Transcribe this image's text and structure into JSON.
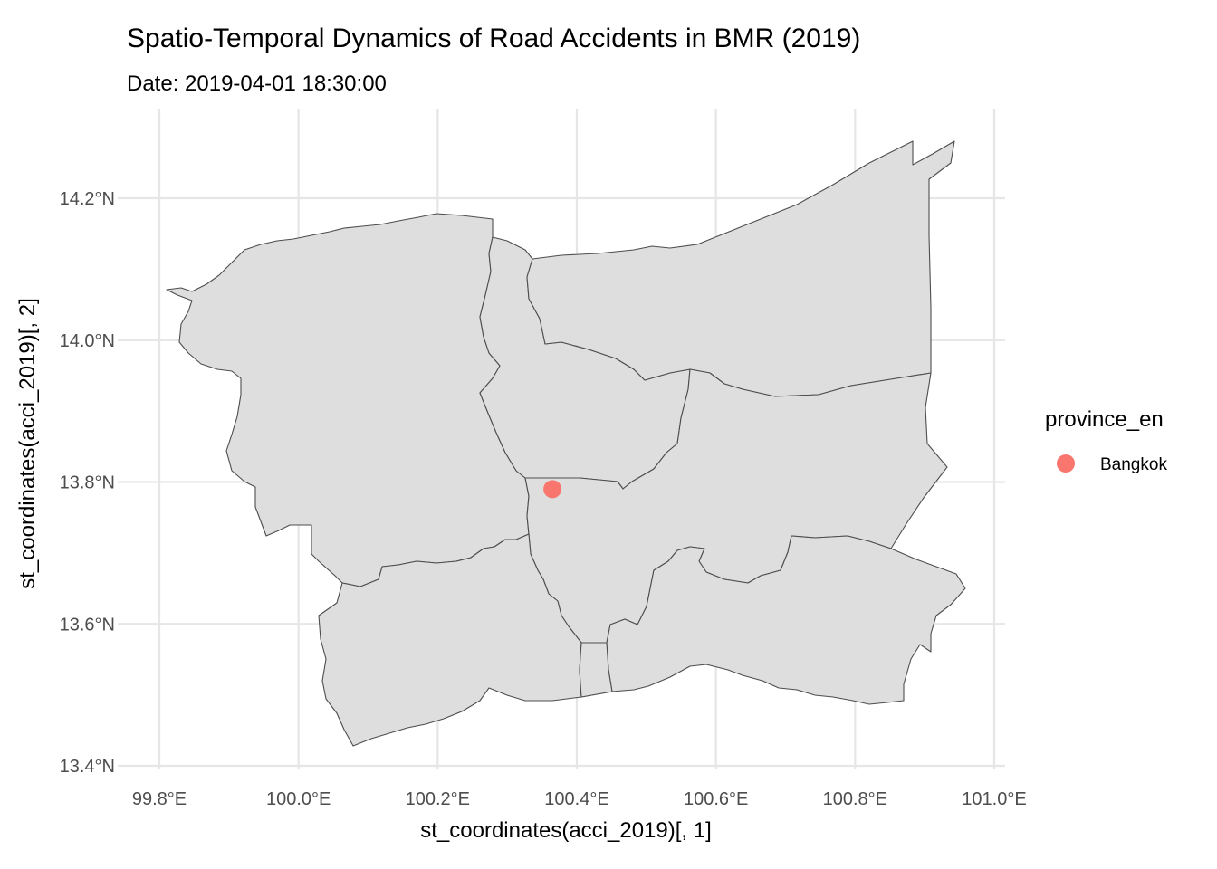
{
  "title": "Spatio-Temporal Dynamics of Road Accidents in BMR (2019)",
  "subtitle": "Date: 2019-04-01 18:30:00",
  "colors": {
    "point": "#f8766d",
    "region_fill": "#dedede",
    "region_stroke": "#4d4d4d",
    "grid": "#e6e6e6"
  },
  "chart_data": {
    "type": "scatter",
    "xlabel": "st_coordinates(acci_2019)[, 1]",
    "ylabel": "st_coordinates(acci_2019)[, 2]",
    "xlim": [
      99.79,
      101.03
    ],
    "ylim": [
      13.39,
      14.33
    ],
    "x_ticks": [
      {
        "value": 99.8,
        "label": "99.8°E"
      },
      {
        "value": 100.0,
        "label": "100.0°E"
      },
      {
        "value": 100.2,
        "label": "100.2°E"
      },
      {
        "value": 100.4,
        "label": "100.4°E"
      },
      {
        "value": 100.6,
        "label": "100.6°E"
      },
      {
        "value": 100.8,
        "label": "100.8°E"
      },
      {
        "value": 101.0,
        "label": "101.0°E"
      }
    ],
    "y_ticks": [
      {
        "value": 13.4,
        "label": "13.4°N"
      },
      {
        "value": 13.6,
        "label": "13.6°N"
      },
      {
        "value": 13.8,
        "label": "13.8°N"
      },
      {
        "value": 14.0,
        "label": "14.0°N"
      },
      {
        "value": 14.2,
        "label": "14.2°N"
      }
    ],
    "grid": true,
    "legend": {
      "title": "province_en",
      "position": "right",
      "entries": [
        {
          "label": "Bangkok",
          "color": "#f8766d"
        }
      ]
    },
    "points": [
      {
        "x": 100.365,
        "y": 13.79,
        "province_en": "Bangkok"
      }
    ]
  }
}
